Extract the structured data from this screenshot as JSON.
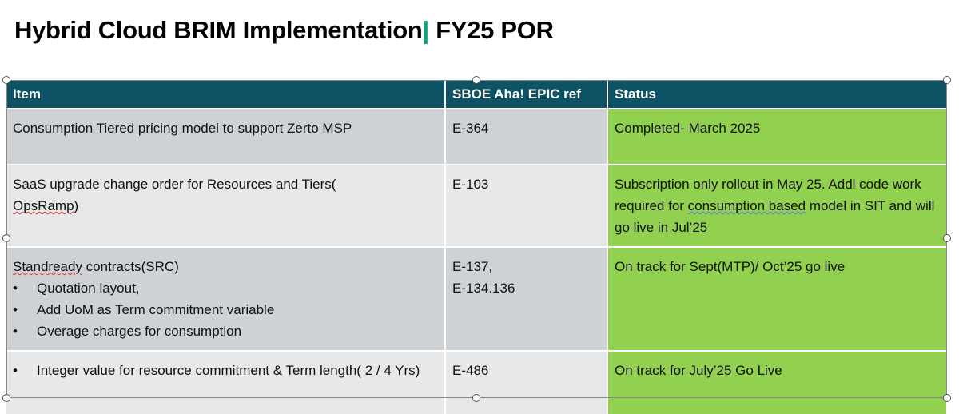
{
  "slide": {
    "title_main": "Hybrid Cloud BRIM Implementation",
    "title_sep": "|",
    "title_suffix": " FY25 POR"
  },
  "table": {
    "headers": [
      "Item",
      "SBOE Aha! EPIC ref",
      "Status"
    ],
    "rows": [
      {
        "item": "Consumption Tiered pricing model to support Zerto MSP",
        "ref": "E-364",
        "status": "Completed- March 2025"
      },
      {
        "item_a": "SaaS upgrade change order for Resources and Tiers(",
        "item_b": "OpsRamp",
        ")": ")",
        "ref": "E-103",
        "status_a": "Subscription only rollout in May 25. Addl code work required for ",
        "status_b": "consumption based",
        "status_c": " model in SIT and will go live in Jul’25"
      },
      {
        "item_a": "Standready",
        "item_b": " contracts(SRC)",
        "bullets": [
          "Quotation layout,",
          "Add UoM as Term commitment variable",
          "Overage charges for consumption"
        ],
        "ref_lines": [
          "E-137,",
          "E-134.136"
        ],
        "status": "On track for Sept(MTP)/ Oct’25 go live"
      },
      {
        "bullets": [
          "Integer value for resource commitment & Term length( 2 / 4 Yrs)"
        ],
        "ref": "E-486",
        "status": "On track for July’25 Go Live"
      }
    ]
  },
  "colors": {
    "header": "#0e5265",
    "row_dark": "#cfd2d5",
    "row_light": "#e7e8ea",
    "status": "#92d050",
    "accent": "#01a982"
  }
}
